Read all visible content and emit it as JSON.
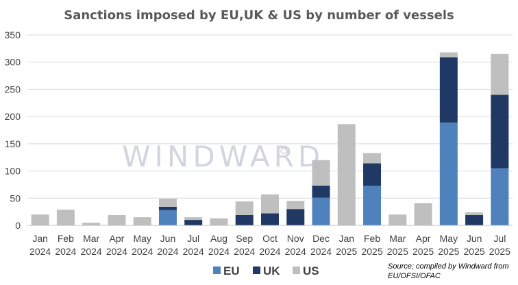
{
  "watermark": "WINDWARD",
  "chart_data": {
    "type": "bar",
    "stacked": true,
    "title": "Sanctions imposed by EU,UK & US by number of vessels",
    "categories": [
      [
        "Jan",
        "2024"
      ],
      [
        "Feb",
        "2024"
      ],
      [
        "Mar",
        "2024"
      ],
      [
        "Apr",
        "2024"
      ],
      [
        "May",
        "2024"
      ],
      [
        "Jun",
        "2024"
      ],
      [
        "Jul",
        "2024"
      ],
      [
        "Aug",
        "2024"
      ],
      [
        "Sep",
        "2024"
      ],
      [
        "Oct",
        "2024"
      ],
      [
        "Nov",
        "2024"
      ],
      [
        "Dec",
        "2024"
      ],
      [
        "Jan",
        "2025"
      ],
      [
        "Feb",
        "2025"
      ],
      [
        "Mar",
        "2025"
      ],
      [
        "Apr",
        "2025"
      ],
      [
        "May",
        "2025"
      ],
      [
        "Jun",
        "2025"
      ],
      [
        "Jul",
        "2025"
      ]
    ],
    "series": [
      {
        "name": "EU",
        "color": "#4f81bd",
        "values": [
          0,
          0,
          0,
          0,
          0,
          28,
          0,
          0,
          0,
          0,
          0,
          51,
          0,
          73,
          0,
          0,
          189,
          0,
          105
        ]
      },
      {
        "name": "UK",
        "color": "#1f3864",
        "values": [
          0,
          0,
          0,
          0,
          0,
          6,
          10,
          0,
          19,
          22,
          30,
          22,
          0,
          41,
          0,
          0,
          120,
          19,
          135
        ]
      },
      {
        "name": "US",
        "color": "#bfbfbf",
        "values": [
          20,
          29,
          5,
          19,
          15,
          15,
          5,
          13,
          25,
          35,
          15,
          47,
          186,
          19,
          20,
          41,
          9,
          5,
          75
        ]
      }
    ],
    "ylim": [
      0,
      350
    ],
    "yticks": [
      0,
      50,
      100,
      150,
      200,
      250,
      300,
      350
    ],
    "grid": true,
    "legend": "bottom",
    "source": [
      "Source; compiled by Windward from",
      "EU/OFSI/OFAC"
    ]
  }
}
